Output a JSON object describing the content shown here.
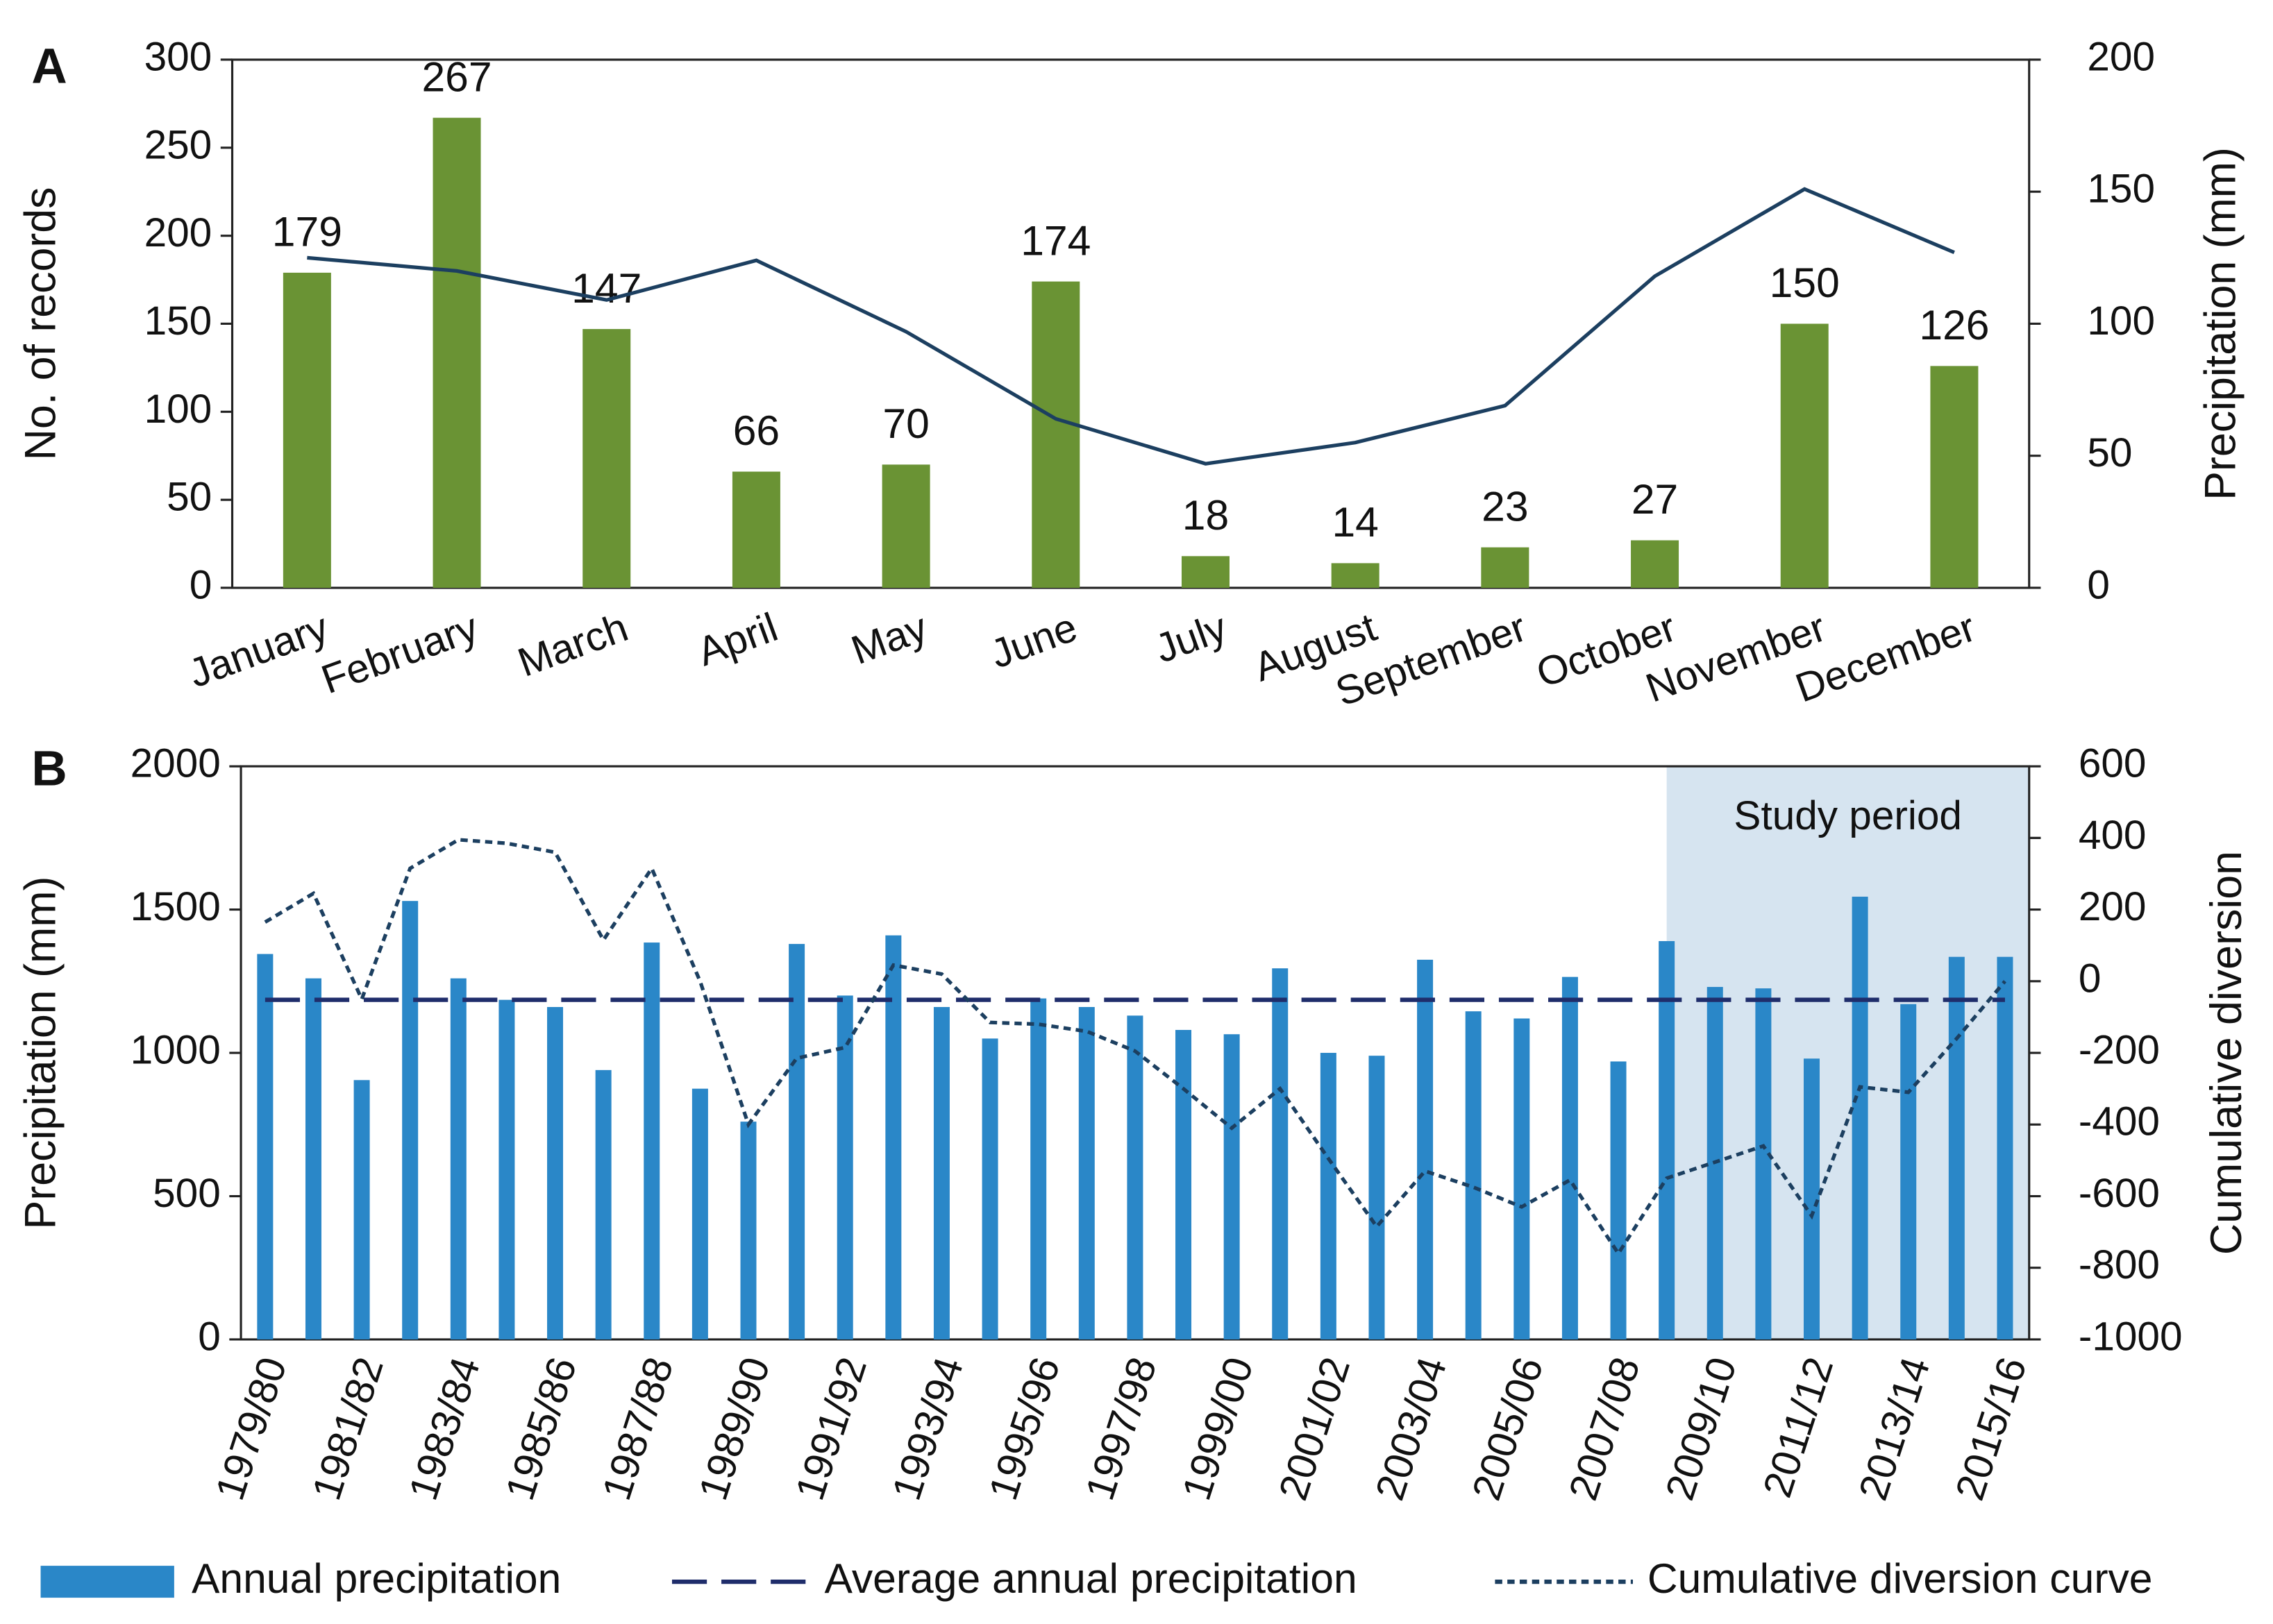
{
  "chart_data": [
    {
      "type": "bar",
      "panel_label": "A",
      "y_label": "No. of records",
      "y2_label": "Precipitation (mm)",
      "categories": [
        "January",
        "February",
        "March",
        "April",
        "May",
        "June",
        "July",
        "August",
        "September",
        "October",
        "November",
        "December"
      ],
      "series": [
        {
          "name": "No. of records",
          "type": "bar",
          "color": "#6a9334",
          "data_labels": true,
          "values": [
            179,
            267,
            147,
            66,
            70,
            174,
            18,
            14,
            23,
            27,
            150,
            126
          ]
        },
        {
          "name": "Precipitation",
          "type": "line",
          "axis": "y2",
          "color": "#1c3f60",
          "values": [
            125,
            120,
            109,
            124,
            97,
            64,
            47,
            55,
            69,
            118,
            151,
            127
          ]
        }
      ],
      "ylim": [
        0,
        300
      ],
      "yticks": [
        0,
        50,
        100,
        150,
        200,
        250,
        300
      ],
      "y2lim": [
        0,
        200
      ],
      "y2ticks": [
        0,
        50,
        100,
        150,
        200
      ]
    },
    {
      "type": "bar",
      "panel_label": "B",
      "y_label": "Precipitation (mm)",
      "y2_label": "Cumulative diversion",
      "categories": [
        "1979/80",
        null,
        "1981/82",
        null,
        "1983/84",
        null,
        "1985/86",
        null,
        "1987/88",
        null,
        "1989/90",
        null,
        "1991/92",
        null,
        "1993/94",
        null,
        "1995/96",
        null,
        "1997/98",
        null,
        "1999/00",
        null,
        "2001/02",
        null,
        "2003/04",
        null,
        "2005/06",
        null,
        "2007/08",
        null,
        "2009/10",
        null,
        "2011/12",
        null,
        "2013/14",
        null,
        "2015/16"
      ],
      "series": [
        {
          "name": "Annual precipitation",
          "type": "bar",
          "color": "#2a87c8",
          "values": [
            1345,
            1260,
            905,
            1530,
            1260,
            1185,
            1160,
            940,
            1385,
            875,
            760,
            1380,
            1200,
            1410,
            1160,
            1050,
            1190,
            1160,
            1130,
            1080,
            1065,
            1295,
            1000,
            990,
            1325,
            1145,
            1120,
            1265,
            970,
            1390,
            1230,
            1225,
            980,
            1545,
            1170,
            1335,
            1335
          ]
        },
        {
          "name": "Average annual precipitation",
          "type": "line",
          "dash": "dashed",
          "color": "#1f2d6b",
          "values": [
            1185,
            1185,
            1185,
            1185,
            1185,
            1185,
            1185,
            1185,
            1185,
            1185,
            1185,
            1185,
            1185,
            1185,
            1185,
            1185,
            1185,
            1185,
            1185,
            1185,
            1185,
            1185,
            1185,
            1185,
            1185,
            1185,
            1185,
            1185,
            1185,
            1185,
            1185,
            1185,
            1185,
            1185,
            1185,
            1185,
            1185
          ]
        },
        {
          "name": "Cumulative diversion curve",
          "type": "line",
          "dash": "dotted",
          "axis": "y2",
          "color": "#1c3f60",
          "values": [
            165,
            245,
            -50,
            315,
            395,
            385,
            360,
            115,
            315,
            0,
            -400,
            -215,
            -185,
            45,
            20,
            -115,
            -120,
            -140,
            -195,
            -300,
            -410,
            -300,
            -495,
            -685,
            -530,
            -575,
            -630,
            -555,
            -760,
            -550,
            -505,
            -460,
            -655,
            -295,
            -310,
            -160,
            0
          ]
        }
      ],
      "shaded_region": {
        "label": "Study period",
        "start_index": 29,
        "color": "#d6e4f0"
      },
      "ylim": [
        0,
        2000
      ],
      "yticks": [
        0,
        500,
        1000,
        1500,
        2000
      ],
      "y2lim": [
        -1000,
        600
      ],
      "y2ticks": [
        -1000,
        -800,
        -600,
        -400,
        -200,
        0,
        200,
        400,
        600
      ],
      "legend": "bottom"
    }
  ]
}
